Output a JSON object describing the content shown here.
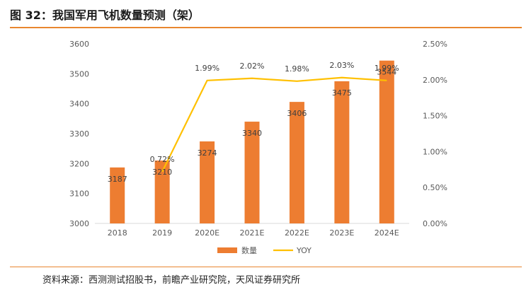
{
  "figure": {
    "title": "图 32：我国军用飞机数量预测（架）",
    "source": "资料来源：西测测试招股书，前瞻产业研究院，天风证券研究所"
  },
  "chart_data": {
    "type": "bar",
    "categories": [
      "2018",
      "2019",
      "2020E",
      "2021E",
      "2022E",
      "2023E",
      "2024E"
    ],
    "series": [
      {
        "name": "数量",
        "type": "bar",
        "axis": "left",
        "color": "#ED7D31",
        "values": [
          3187,
          3210,
          3274,
          3340,
          3406,
          3475,
          3544
        ],
        "labels": [
          "3187",
          "3210",
          "3274",
          "3340",
          "3406",
          "3475",
          "3544"
        ]
      },
      {
        "name": "YOY",
        "type": "line",
        "axis": "right",
        "color": "#FFC000",
        "values": [
          null,
          0.72,
          1.99,
          2.02,
          1.98,
          2.03,
          1.99
        ],
        "labels": [
          "",
          "0.72%",
          "1.99%",
          "2.02%",
          "1.98%",
          "2.03%",
          "1.99%"
        ]
      }
    ],
    "y_left": {
      "min": 3000,
      "max": 3600,
      "ticks": [
        "3000",
        "3100",
        "3200",
        "3300",
        "3400",
        "3500",
        "3600"
      ]
    },
    "y_right": {
      "min": 0,
      "max": 2.5,
      "ticks": [
        "0.00%",
        "0.50%",
        "1.00%",
        "1.50%",
        "2.00%",
        "2.50%"
      ]
    },
    "xlabel": "",
    "ylabel": "",
    "grid": false,
    "legend": "bottom"
  }
}
